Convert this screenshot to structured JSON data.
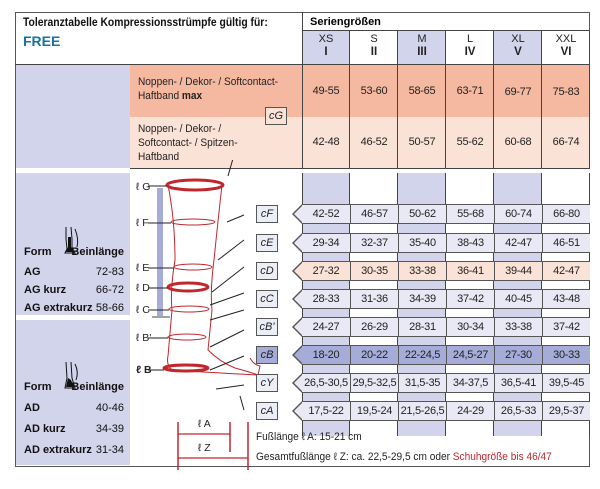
{
  "header": {
    "title": "Toleranztabelle Kompressionsstrümpfe gültig für:",
    "product": "FREE",
    "series_label": "Seriengrößen"
  },
  "sizes": [
    {
      "name": "XS",
      "roman": "I"
    },
    {
      "name": "S",
      "roman": "II"
    },
    {
      "name": "M",
      "roman": "III"
    },
    {
      "name": "L",
      "roman": "IV"
    },
    {
      "name": "XL",
      "roman": "V"
    },
    {
      "name": "XXL",
      "roman": "VI"
    }
  ],
  "band_rows": [
    {
      "label_line1": "Noppen- / Dekor- / Softcontact-",
      "label_line2": "Haftband",
      "label_bold": "max",
      "values": [
        "49-55",
        "53-60",
        "58-65",
        "63-71",
        "69-77",
        "75-83"
      ]
    },
    {
      "label_line1": "Noppen- / Dekor- /",
      "label_line2": "Softcontact- / Spitzen-",
      "label_line3": "Haftband",
      "values": [
        "42-48",
        "46-52",
        "50-57",
        "55-62",
        "60-68",
        "66-74"
      ]
    }
  ],
  "tag_g": "cG",
  "measure_rows": [
    {
      "tag": "cF",
      "values": [
        "42-52",
        "46-57",
        "50-62",
        "55-68",
        "60-74",
        "66-80"
      ],
      "style": "light"
    },
    {
      "tag": "cE",
      "values": [
        "29-34",
        "32-37",
        "35-40",
        "38-43",
        "42-47",
        "46-51"
      ],
      "style": "light"
    },
    {
      "tag": "cD",
      "values": [
        "27-32",
        "30-35",
        "33-38",
        "36-41",
        "39-44",
        "42-47"
      ],
      "style": "peach"
    },
    {
      "tag": "cC",
      "values": [
        "28-33",
        "31-36",
        "34-39",
        "37-42",
        "40-45",
        "43-48"
      ],
      "style": "light"
    },
    {
      "tag": "cB'",
      "values": [
        "24-27",
        "26-29",
        "28-31",
        "30-34",
        "33-38",
        "37-42"
      ],
      "style": "light"
    },
    {
      "tag": "cB",
      "values": [
        "18-20",
        "20-22",
        "22-24,5",
        "24,5-27",
        "27-30",
        "30-33"
      ],
      "style": "blue"
    },
    {
      "tag": "cY",
      "values": [
        "26,5-30,5",
        "29,5-32,5",
        "31,5-35",
        "34-37,5",
        "36,5-41",
        "39,5-45"
      ],
      "style": "light"
    },
    {
      "tag": "cA",
      "values": [
        "17,5-22",
        "19,5-24",
        "21,5-26,5",
        "24-29",
        "26,5-33",
        "29,5-37"
      ],
      "style": "light"
    }
  ],
  "leg_labels": [
    "ℓ G",
    "ℓ F",
    "ℓ E",
    "ℓ D",
    "ℓ C",
    "ℓ B'",
    "ℓ B"
  ],
  "foot_labels": {
    "a": "ℓ A",
    "z": "ℓ Z"
  },
  "form_ag": {
    "form_label": "Form",
    "length_label": "Beinlänge",
    "rows": [
      {
        "name": "AG",
        "value": "72-83"
      },
      {
        "name": "AG kurz",
        "value": "66-72"
      },
      {
        "name": "AG extrakurz",
        "value": "58-66"
      }
    ]
  },
  "form_ad": {
    "form_label": "Form",
    "length_label": "Beinlänge",
    "rows": [
      {
        "name": "AD",
        "value": "40-46"
      },
      {
        "name": "AD kurz",
        "value": "34-39"
      },
      {
        "name": "AD extrakurz",
        "value": "31-34"
      }
    ]
  },
  "footer": {
    "foot_length": "Fußlänge ℓ A: 15-21 cm",
    "total_length_prefix": "Gesamtfußlänge ℓ Z: ca. 22,5-29,5 cm oder ",
    "total_length_highlight": "Schuhgröße bis 46/47"
  },
  "colors": {
    "lavender": "#d1d4ea",
    "peach_dark": "#f4b9a0",
    "peach_light": "#fbe2d6",
    "blue_highlight": "#a6acd8",
    "brand_blue": "#1a6fa5",
    "red": "#c0272d"
  }
}
